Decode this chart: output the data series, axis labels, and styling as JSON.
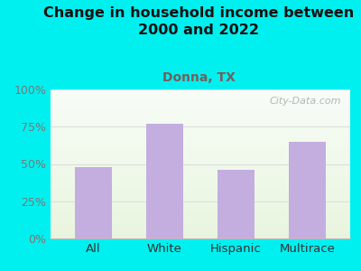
{
  "title": "Change in household income between\n2000 and 2022",
  "subtitle": "Donna, TX",
  "categories": [
    "All",
    "White",
    "Hispanic",
    "Multirace"
  ],
  "values": [
    48,
    77,
    46,
    65
  ],
  "bar_color": "#c4aee0",
  "title_fontsize": 11.5,
  "title_color": "#111111",
  "subtitle_fontsize": 10,
  "subtitle_color": "#7a5c58",
  "tick_label_color": "#777777",
  "tick_label_fontsize": 9,
  "xlabel_fontsize": 9.5,
  "xlabel_color": "#333333",
  "outer_bg_color": "#00f0f0",
  "ylim": [
    0,
    100
  ],
  "yticks": [
    0,
    25,
    50,
    75,
    100
  ],
  "watermark": "City-Data.com",
  "watermark_color": "#aaaaaa",
  "grid_color": "#dddddd"
}
